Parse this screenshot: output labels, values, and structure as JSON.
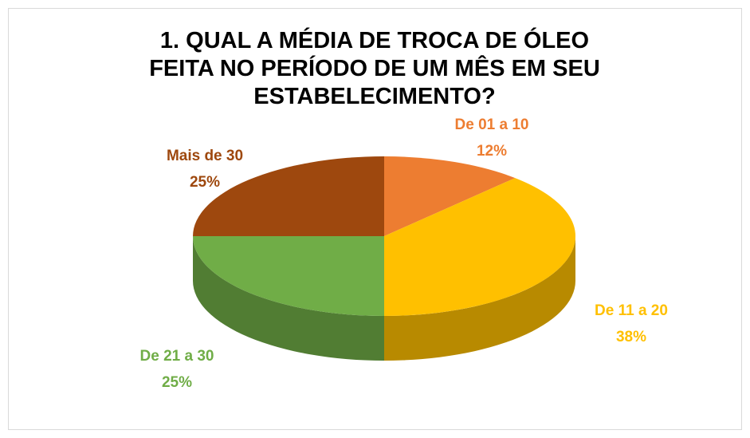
{
  "chart_data": {
    "type": "pie3d",
    "title": "1. QUAL A MÉDIA DE TROCA DE ÓLEO FEITA NO PERÍODO DE UM MÊS EM SEU ESTABELECIMENTO?",
    "categories": [
      "De 01 a 10",
      "De 11 a 20",
      "De 21 a 30",
      "Mais de 30"
    ],
    "values": [
      12,
      38,
      25,
      25
    ],
    "value_labels": [
      "12%",
      "38%",
      "25%",
      "25%"
    ],
    "colors": [
      "#ed7d31",
      "#ffc000",
      "#70ad47",
      "#9e480e"
    ]
  }
}
